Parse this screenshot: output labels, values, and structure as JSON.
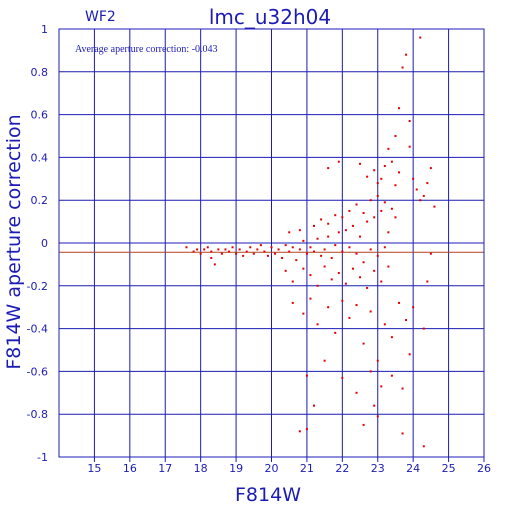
{
  "chart_data": {
    "type": "scatter",
    "title": "lmc_u32h04",
    "subtitle": "WF2",
    "annotation": "Average aperture correction: -0.043",
    "xlabel": "F814W",
    "ylabel": "F814W aperture correction",
    "xlim": [
      14,
      26
    ],
    "ylim": [
      -1,
      1
    ],
    "x_ticks": [
      "15",
      "16",
      "17",
      "18",
      "19",
      "20",
      "21",
      "22",
      "23",
      "24",
      "25",
      "26"
    ],
    "y_ticks": [
      "-1",
      "-0.8",
      "-0.6",
      "-0.4",
      "-0.2",
      "0",
      "0.2",
      "0.4",
      "0.6",
      "0.8",
      "1"
    ],
    "grid": true,
    "reference_lines": [
      {
        "y": 0,
        "color": "#1c1cb4"
      },
      {
        "y": -0.043,
        "color": "#b44020"
      }
    ],
    "colors": {
      "axes": "#1c1cb4",
      "points": "#e00000",
      "mean_line": "#b44020"
    },
    "series": [
      {
        "points": [
          [
            17.6,
            -0.02
          ],
          [
            17.8,
            -0.04
          ],
          [
            17.9,
            -0.03
          ],
          [
            18.0,
            -0.05
          ],
          [
            18.1,
            -0.03
          ],
          [
            18.2,
            -0.02
          ],
          [
            18.3,
            -0.04
          ],
          [
            18.3,
            -0.07
          ],
          [
            18.4,
            -0.1
          ],
          [
            18.5,
            -0.03
          ],
          [
            18.6,
            -0.05
          ],
          [
            18.7,
            -0.03
          ],
          [
            18.8,
            -0.04
          ],
          [
            18.9,
            -0.02
          ],
          [
            19.0,
            -0.05
          ],
          [
            19.1,
            -0.03
          ],
          [
            19.2,
            -0.06
          ],
          [
            19.3,
            -0.04
          ],
          [
            19.4,
            -0.02
          ],
          [
            19.5,
            -0.05
          ],
          [
            19.6,
            -0.03
          ],
          [
            19.7,
            -0.01
          ],
          [
            19.8,
            -0.04
          ],
          [
            19.9,
            -0.06
          ],
          [
            20.0,
            -0.02
          ],
          [
            20.1,
            -0.05
          ],
          [
            20.2,
            -0.03
          ],
          [
            20.3,
            -0.07
          ],
          [
            20.4,
            -0.01
          ],
          [
            20.5,
            -0.04
          ],
          [
            20.6,
            -0.02
          ],
          [
            20.7,
            -0.08
          ],
          [
            20.8,
            -0.03
          ],
          [
            20.9,
            0.01
          ],
          [
            21.0,
            -0.05
          ],
          [
            21.1,
            -0.02
          ],
          [
            21.2,
            -0.04
          ],
          [
            21.3,
            0.02
          ],
          [
            21.4,
            -0.06
          ],
          [
            21.5,
            -0.03
          ],
          [
            21.6,
            0.03
          ],
          [
            21.7,
            -0.07
          ],
          [
            21.8,
            -0.01
          ],
          [
            21.9,
            0.05
          ],
          [
            22.0,
            -0.04
          ],
          [
            22.1,
            0.06
          ],
          [
            22.2,
            -0.02
          ],
          [
            22.3,
            0.08
          ],
          [
            22.4,
            -0.05
          ],
          [
            22.5,
            0.03
          ],
          [
            22.6,
            -0.09
          ],
          [
            22.7,
            0.1
          ],
          [
            22.8,
            -0.03
          ],
          [
            22.9,
            0.12
          ],
          [
            23.0,
            -0.06
          ],
          [
            23.1,
            0.15
          ],
          [
            23.2,
            -0.02
          ],
          [
            23.3,
            0.05
          ],
          [
            20.4,
            -0.13
          ],
          [
            20.6,
            -0.18
          ],
          [
            20.9,
            -0.12
          ],
          [
            21.1,
            -0.15
          ],
          [
            21.3,
            -0.2
          ],
          [
            21.5,
            -0.11
          ],
          [
            21.7,
            -0.17
          ],
          [
            21.9,
            -0.14
          ],
          [
            22.1,
            -0.19
          ],
          [
            22.3,
            -0.12
          ],
          [
            22.5,
            -0.16
          ],
          [
            22.7,
            -0.21
          ],
          [
            22.9,
            -0.13
          ],
          [
            23.1,
            -0.18
          ],
          [
            23.3,
            -0.11
          ],
          [
            20.5,
            0.05
          ],
          [
            20.8,
            0.06
          ],
          [
            21.2,
            0.08
          ],
          [
            21.4,
            0.11
          ],
          [
            21.6,
            0.09
          ],
          [
            21.8,
            0.13
          ],
          [
            22.0,
            0.12
          ],
          [
            22.2,
            0.15
          ],
          [
            22.4,
            0.18
          ],
          [
            22.6,
            0.14
          ],
          [
            22.8,
            0.2
          ],
          [
            23.0,
            0.22
          ],
          [
            23.2,
            0.19
          ],
          [
            23.4,
            0.16
          ],
          [
            23.5,
            0.12
          ],
          [
            20.6,
            -0.28
          ],
          [
            20.9,
            -0.33
          ],
          [
            21.1,
            -0.26
          ],
          [
            21.3,
            -0.38
          ],
          [
            21.6,
            -0.3
          ],
          [
            21.8,
            -0.42
          ],
          [
            22.0,
            -0.27
          ],
          [
            22.2,
            -0.35
          ],
          [
            22.4,
            -0.29
          ],
          [
            22.6,
            -0.47
          ],
          [
            22.8,
            -0.32
          ],
          [
            23.0,
            -0.55
          ],
          [
            23.2,
            -0.38
          ],
          [
            23.4,
            -0.44
          ],
          [
            23.6,
            -0.28
          ],
          [
            23.8,
            -0.36
          ],
          [
            21.0,
            -0.62
          ],
          [
            21.5,
            -0.55
          ],
          [
            22.0,
            -0.63
          ],
          [
            22.4,
            -0.7
          ],
          [
            22.8,
            -0.6
          ],
          [
            23.1,
            -0.67
          ],
          [
            23.4,
            -0.62
          ],
          [
            23.7,
            -0.68
          ],
          [
            21.2,
            -0.76
          ],
          [
            22.6,
            -0.85
          ],
          [
            23.0,
            -0.81
          ],
          [
            22.9,
            -0.76
          ],
          [
            20.8,
            -0.88
          ],
          [
            21.0,
            -0.87
          ],
          [
            23.7,
            -0.89
          ],
          [
            24.3,
            -0.95
          ],
          [
            23.0,
            0.28
          ],
          [
            23.1,
            0.3
          ],
          [
            23.2,
            0.36
          ],
          [
            23.3,
            0.44
          ],
          [
            23.4,
            0.38
          ],
          [
            23.5,
            0.27
          ],
          [
            23.5,
            0.5
          ],
          [
            23.6,
            0.63
          ],
          [
            23.6,
            0.33
          ],
          [
            23.7,
            0.82
          ],
          [
            23.8,
            0.88
          ],
          [
            23.9,
            0.45
          ],
          [
            23.9,
            0.57
          ],
          [
            24.0,
            0.3
          ],
          [
            24.1,
            0.25
          ],
          [
            24.2,
            0.2
          ],
          [
            24.3,
            0.22
          ],
          [
            24.4,
            0.28
          ],
          [
            24.5,
            0.35
          ],
          [
            24.6,
            0.17
          ],
          [
            22.5,
            0.37
          ],
          [
            22.7,
            0.31
          ],
          [
            22.9,
            0.34
          ],
          [
            21.9,
            0.38
          ],
          [
            21.6,
            0.35
          ],
          [
            24.3,
            -0.4
          ],
          [
            24.5,
            -0.05
          ],
          [
            24.4,
            -0.18
          ],
          [
            24.0,
            -0.3
          ],
          [
            23.9,
            -0.52
          ],
          [
            24.2,
            0.96
          ]
        ]
      }
    ]
  }
}
